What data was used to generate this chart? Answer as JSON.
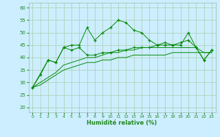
{
  "xlabel": "Humidité relative (%)",
  "bg_color": "#cceeff",
  "grid_color": "#aaccaa",
  "line_color": "#008800",
  "xlim": [
    -0.5,
    23.5
  ],
  "ylim": [
    18,
    62
  ],
  "yticks": [
    20,
    25,
    30,
    35,
    40,
    45,
    50,
    55,
    60
  ],
  "xticks": [
    0,
    1,
    2,
    3,
    4,
    5,
    6,
    7,
    8,
    9,
    10,
    11,
    12,
    13,
    14,
    15,
    16,
    17,
    18,
    19,
    20,
    21,
    22,
    23
  ],
  "line1_x": [
    0,
    1,
    2,
    3,
    4,
    5,
    6,
    7,
    8,
    9,
    10,
    11,
    12,
    13,
    14,
    15,
    16,
    17,
    18,
    19,
    20,
    21,
    22,
    23
  ],
  "line1_y": [
    28,
    33,
    39,
    38,
    44,
    45,
    45,
    52,
    47,
    50,
    52,
    55,
    54,
    51,
    50,
    47,
    45,
    46,
    45,
    45,
    50,
    44,
    39,
    43
  ],
  "line2_x": [
    0,
    2,
    3,
    4,
    5,
    6,
    7,
    8,
    9,
    10,
    11,
    12,
    13,
    14,
    15,
    16,
    17,
    18,
    19,
    20,
    21,
    22,
    23
  ],
  "line2_y": [
    28,
    39,
    38,
    44,
    43,
    44,
    41,
    41,
    42,
    42,
    43,
    43,
    44,
    44,
    44,
    45,
    45,
    45,
    46,
    47,
    44,
    39,
    43
  ],
  "line3_x": [
    0,
    1,
    2,
    3,
    4,
    5,
    6,
    7,
    8,
    9,
    10,
    11,
    12,
    13,
    14,
    15,
    16,
    17,
    18,
    19,
    20,
    21,
    22,
    23
  ],
  "line3_y": [
    28,
    30,
    32,
    34,
    37,
    38,
    39,
    40,
    40,
    41,
    42,
    42,
    43,
    43,
    44,
    44,
    44,
    44,
    44,
    44,
    44,
    44,
    42,
    42
  ],
  "line4_x": [
    0,
    1,
    2,
    3,
    4,
    5,
    6,
    7,
    8,
    9,
    10,
    11,
    12,
    13,
    14,
    15,
    16,
    17,
    18,
    19,
    20,
    21,
    22,
    23
  ],
  "line4_y": [
    28,
    29,
    31,
    33,
    35,
    36,
    37,
    38,
    38,
    39,
    39,
    40,
    40,
    41,
    41,
    41,
    41,
    41,
    42,
    42,
    42,
    42,
    42,
    42
  ]
}
